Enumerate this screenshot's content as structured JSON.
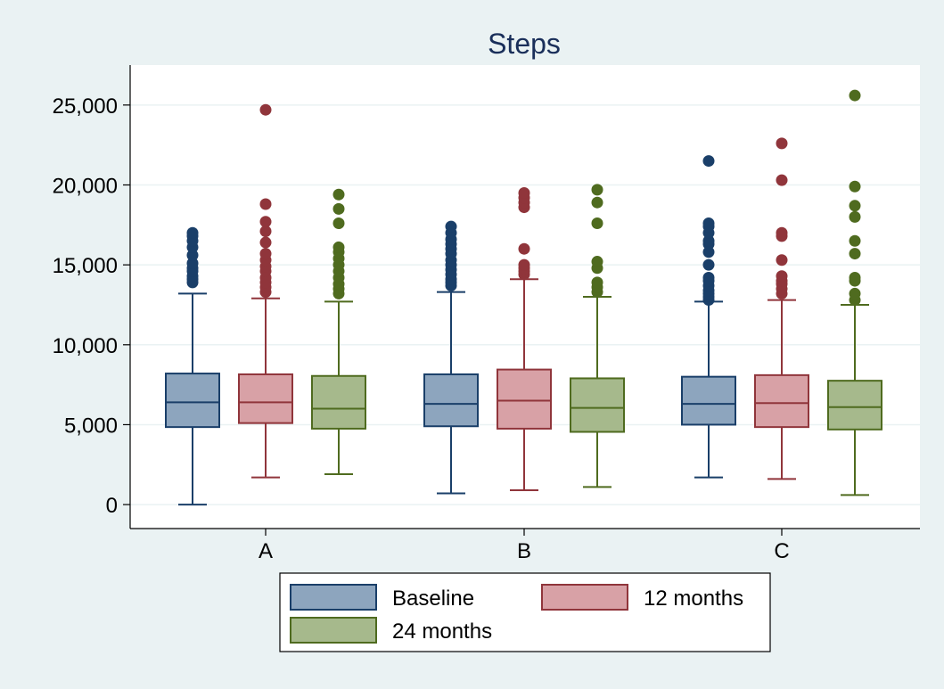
{
  "chart_data": {
    "type": "box",
    "title": "Steps",
    "xlabel": "",
    "ylabel": "",
    "ylim": [
      -1500,
      27500
    ],
    "yticks": [
      0,
      5000,
      10000,
      15000,
      20000,
      25000
    ],
    "ytick_labels": [
      "0",
      "5,000",
      "10,000",
      "15,000",
      "20,000",
      "25,000"
    ],
    "categories": [
      "A",
      "B",
      "C"
    ],
    "grid": true,
    "legend_position": "bottom",
    "series": [
      {
        "name": "Baseline",
        "fill": "#8da5be",
        "stroke": "#1a3f69",
        "boxes": [
          {
            "min": 0,
            "q1": 4850,
            "median": 6400,
            "q3": 8200,
            "max": 13200,
            "outliers": [
              13900,
              14100,
              14300,
              14600,
              14800,
              15100,
              15600,
              16100,
              16500,
              16800,
              17000
            ]
          },
          {
            "min": 700,
            "q1": 4900,
            "median": 6300,
            "q3": 8150,
            "max": 13300,
            "outliers": [
              13700,
              13900,
              14100,
              14400,
              14700,
              15000,
              15300,
              15700,
              16000,
              16300,
              16600,
              17000,
              17400
            ]
          },
          {
            "min": 1700,
            "q1": 5000,
            "median": 6300,
            "q3": 8000,
            "max": 12700,
            "outliers": [
              12800,
              13000,
              13200,
              13400,
              13700,
              14000,
              14200,
              15000,
              15800,
              16300,
              16500,
              17000,
              17400,
              17600,
              21500
            ]
          }
        ]
      },
      {
        "name": "12 months",
        "fill": "#d8a1a6",
        "stroke": "#90353b",
        "boxes": [
          {
            "min": 1700,
            "q1": 5100,
            "median": 6400,
            "q3": 8150,
            "max": 12900,
            "outliers": [
              13300,
              13600,
              13900,
              14200,
              14600,
              14900,
              15300,
              15700,
              16400,
              17100,
              17700,
              18800,
              24700
            ]
          },
          {
            "min": 900,
            "q1": 4750,
            "median": 6500,
            "q3": 8450,
            "max": 14100,
            "outliers": [
              14400,
              14600,
              14800,
              15000,
              16000,
              18600,
              18900,
              19200,
              19500
            ]
          },
          {
            "min": 1600,
            "q1": 4850,
            "median": 6350,
            "q3": 8100,
            "max": 12800,
            "outliers": [
              13200,
              13500,
              13800,
              14000,
              14300,
              15300,
              16800,
              17000,
              20300,
              22600
            ]
          }
        ]
      },
      {
        "name": "24 months",
        "fill": "#a6b98c",
        "stroke": "#4f6b1f",
        "boxes": [
          {
            "min": 1900,
            "q1": 4750,
            "median": 6000,
            "q3": 8050,
            "max": 12700,
            "outliers": [
              13200,
              13500,
              13800,
              14200,
              14600,
              15000,
              15400,
              15800,
              16100,
              17600,
              18500,
              19400
            ]
          },
          {
            "min": 1100,
            "q1": 4550,
            "median": 6050,
            "q3": 7900,
            "max": 13000,
            "outliers": [
              13300,
              13600,
              13900,
              14800,
              15200,
              17600,
              18900,
              19700
            ]
          },
          {
            "min": 600,
            "q1": 4700,
            "median": 6100,
            "q3": 7750,
            "max": 12500,
            "outliers": [
              12800,
              13200,
              14000,
              14200,
              15700,
              16500,
              18000,
              18700,
              19900,
              25600
            ]
          }
        ]
      }
    ]
  }
}
